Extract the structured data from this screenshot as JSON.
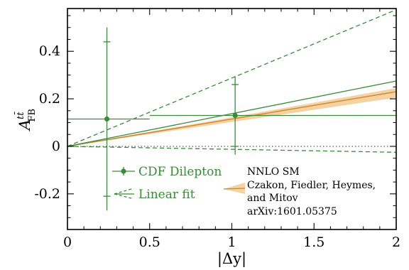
{
  "chart_data": {
    "type": "line",
    "xlabel": "|Δy|",
    "ylabel_main": "A",
    "ylabel_sup": "tt̄",
    "ylabel_sub": "FB",
    "xlim": [
      0,
      2
    ],
    "ylim": [
      -0.35,
      0.58
    ],
    "x_ticks": [
      0,
      0.5,
      1,
      1.5,
      2
    ],
    "x_tick_labels": [
      "0",
      "0.5",
      "1",
      "1.5",
      "2"
    ],
    "y_ticks": [
      -0.2,
      0,
      0.2,
      0.4
    ],
    "y_tick_labels": [
      "-0.2",
      "0",
      "0.2",
      "0.4"
    ],
    "zero_line": true,
    "grid": false,
    "legend_position": "bottom-left",
    "colors": {
      "data": "#3a8a3a",
      "band": "#f5d2a2",
      "central": "#c8862f"
    },
    "cdf_dilepton": {
      "name": "CDF Dilepton",
      "points": [
        {
          "x": 0.24,
          "y": 0.115,
          "x_err": [
            0.0,
            0.5
          ],
          "y_err_inner": [
            -0.21,
            0.44
          ],
          "y_err_outer": [
            -0.27,
            0.5
          ]
        },
        {
          "x": 1.02,
          "y": 0.13,
          "x_err": [
            0.5,
            2.0
          ],
          "y_err_inner": [
            0.0,
            0.26
          ],
          "y_err_outer": [
            -0.035,
            0.295
          ]
        }
      ]
    },
    "linear_fit": {
      "name": "Linear fit",
      "central": {
        "x": [
          0,
          2
        ],
        "y": [
          0,
          0.275
        ]
      },
      "upper": {
        "x": [
          0,
          2
        ],
        "y": [
          0,
          0.575
        ]
      },
      "lower": {
        "x": [
          0,
          2
        ],
        "y": [
          0,
          -0.025
        ]
      }
    },
    "nnlo_sm": {
      "legend_lines": [
        "NNLO SM",
        "Czakon, Fiedler, Heymes,",
        "and Mitov",
        "arXiv:1601.05375"
      ],
      "central": {
        "x": [
          0,
          2
        ],
        "y": [
          0,
          0.23
        ]
      },
      "band_upper": {
        "x": [
          0,
          2
        ],
        "y": [
          0,
          0.245
        ]
      },
      "band_lower": {
        "x": [
          0,
          2
        ],
        "y": [
          0,
          0.205
        ]
      }
    }
  }
}
